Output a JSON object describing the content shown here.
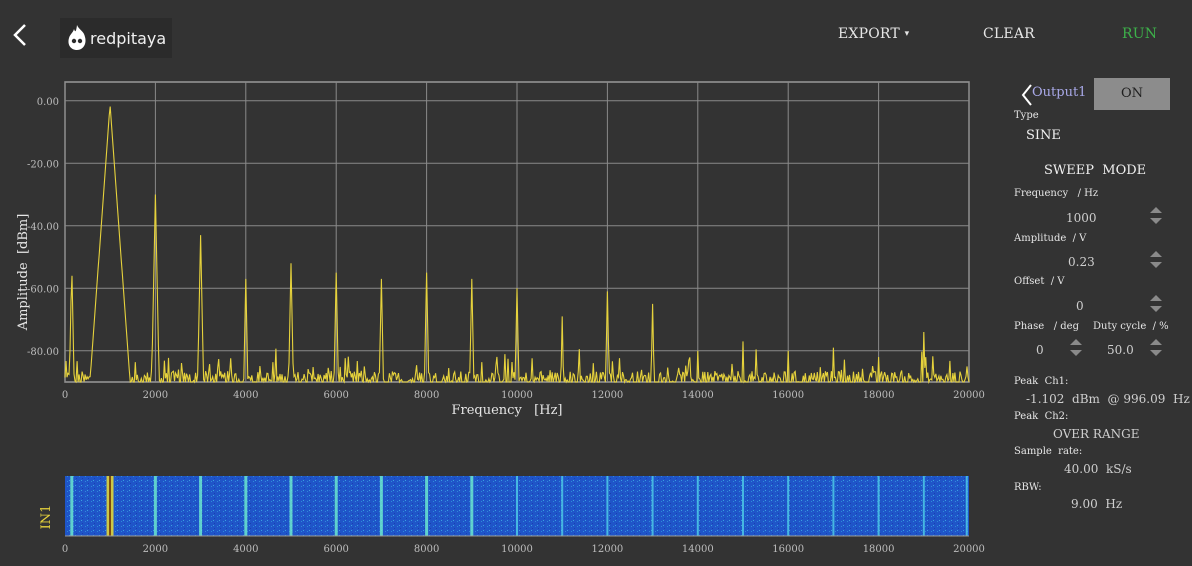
{
  "header": {
    "export_label": "EXPORT",
    "clear_label": "CLEAR",
    "run_label": "RUN",
    "logo_text": "redpitaya"
  },
  "colors": {
    "background": "#333333",
    "trace": "#e6d23c",
    "run": "#3db04a",
    "grid": "#8a8a8a",
    "on_button": "#8c8c8c"
  },
  "output_panel": {
    "output_name": "Output1",
    "on_label": "ON",
    "type_label": "Type",
    "type_value": "SINE",
    "sweep_mode_label": "SWEEP  MODE",
    "frequency_label": "Frequency   / Hz",
    "frequency_value": "1000",
    "amplitude_label": "Amplitude  / V",
    "amplitude_value": "0.23",
    "offset_label": "Offset  / V",
    "offset_value": "0",
    "phase_label": "Phase   / deg",
    "phase_value": "0",
    "duty_label": "Duty cycle  / %",
    "duty_value": "50.0"
  },
  "measurements": {
    "peak_ch1_label": "Peak  Ch1:",
    "peak_ch1_value": "-1.102  dBm  @ 996.09  Hz",
    "peak_ch2_label": "Peak  Ch2:",
    "peak_ch2_value": "OVER RANGE",
    "sample_rate_label": "Sample  rate:",
    "sample_rate_value": "40.00  kS/s",
    "rbw_label": "RBW:",
    "rbw_value": "9.00  Hz"
  },
  "waterfall": {
    "channel_label": "IN1"
  },
  "chart_data": {
    "type": "line",
    "xlabel": "Frequency   [Hz]",
    "ylabel": "Amplitude  [dBm]",
    "xlim": [
      0,
      20000
    ],
    "ylim": [
      -90,
      6
    ],
    "x_ticks": [
      "0",
      "2000",
      "4000",
      "6000",
      "8000",
      "10000",
      "12000",
      "14000",
      "16000",
      "18000",
      "20000"
    ],
    "y_ticks": [
      "0.00",
      "-20.00",
      "-40.00",
      "-60.00",
      "-80.00"
    ],
    "y_tick_values": [
      0,
      -20,
      -40,
      -60,
      -80
    ],
    "grid": true,
    "noise_floor": -88,
    "peaks": [
      {
        "x": 150,
        "y": -52
      },
      {
        "x": 996.09,
        "y": -1.1
      },
      {
        "x": 2000,
        "y": -30
      },
      {
        "x": 3000,
        "y": -43
      },
      {
        "x": 4000,
        "y": -57
      },
      {
        "x": 5000,
        "y": -52
      },
      {
        "x": 6000,
        "y": -55
      },
      {
        "x": 7000,
        "y": -57
      },
      {
        "x": 8000,
        "y": -55
      },
      {
        "x": 9000,
        "y": -57
      },
      {
        "x": 10000,
        "y": -60
      },
      {
        "x": 11000,
        "y": -69
      },
      {
        "x": 12000,
        "y": -61
      },
      {
        "x": 13000,
        "y": -65
      },
      {
        "x": 14000,
        "y": -80
      },
      {
        "x": 15000,
        "y": -77
      },
      {
        "x": 16000,
        "y": -80
      },
      {
        "x": 17000,
        "y": -79
      },
      {
        "x": 18000,
        "y": -82
      },
      {
        "x": 19000,
        "y": -74
      },
      {
        "x": 19950,
        "y": -81
      }
    ]
  }
}
